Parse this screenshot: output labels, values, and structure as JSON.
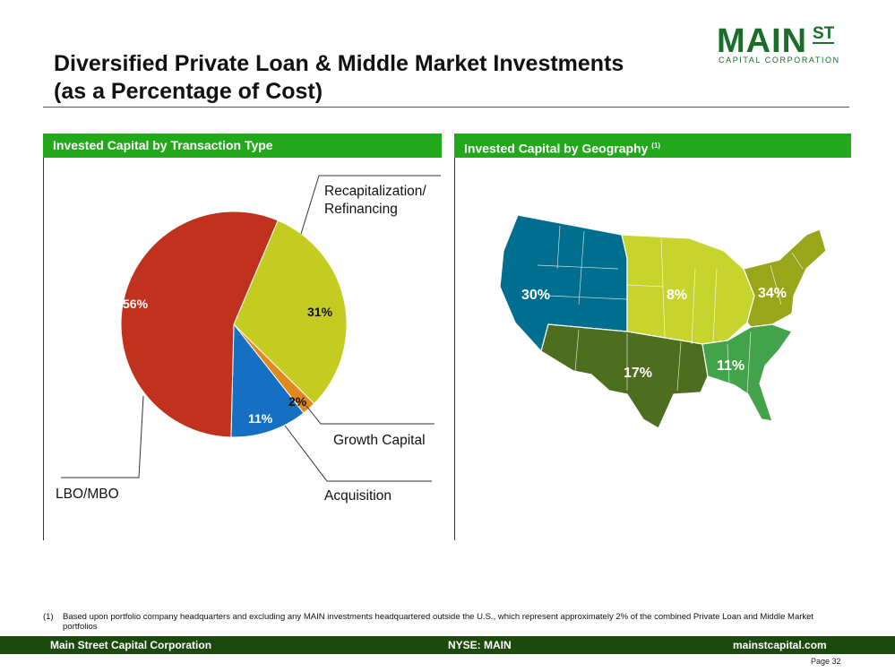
{
  "title_line1": "Diversified Private Loan & Middle Market Investments",
  "title_line2": "(as a Percentage of Cost)",
  "logo": {
    "main": "MAIN",
    "st": "ST",
    "sub": "CAPITAL CORPORATION"
  },
  "panels": {
    "left_header": "Invested Capital by Transaction Type",
    "right_header": "Invested Capital by Geography",
    "right_header_note": "(1)"
  },
  "chart_data": [
    {
      "type": "pie",
      "title": "Invested Capital by Transaction Type",
      "slices": [
        {
          "label": "LBO/MBO",
          "value": 56,
          "display": "56%",
          "color": "#c0311e"
        },
        {
          "label": "Recapitalization/ Refinancing",
          "value": 31,
          "display": "31%",
          "color": "#c4cc22"
        },
        {
          "label": "Growth Capital",
          "value": 2,
          "display": "2%",
          "color": "#e08a1e"
        },
        {
          "label": "Acquisition",
          "value": 11,
          "display": "11%",
          "color": "#1570c4"
        }
      ],
      "callouts": {
        "recap_line1": "Recapitalization/",
        "recap_line2": "Refinancing",
        "growth": "Growth Capital",
        "acquisition": "Acquisition",
        "lbo": "LBO/MBO"
      }
    },
    {
      "type": "map",
      "title": "Invested Capital by Geography",
      "regions": [
        {
          "name": "West",
          "display": "30%",
          "value": 30,
          "color": "#006e8f"
        },
        {
          "name": "Midwest",
          "display": "8%",
          "value": 8,
          "color": "#c8d42e"
        },
        {
          "name": "Northeast",
          "display": "34%",
          "value": 34,
          "color": "#9aa61a"
        },
        {
          "name": "Southwest",
          "display": "17%",
          "value": 17,
          "color": "#4d6e1e"
        },
        {
          "name": "Southeast",
          "display": "11%",
          "value": 11,
          "color": "#43a34a"
        }
      ]
    }
  ],
  "footnote": {
    "number": "(1)",
    "text": "Based upon portfolio company headquarters and excluding any MAIN investments headquartered outside the U.S., which represent approximately 2% of the combined Private Loan and Middle Market portfolios"
  },
  "footer": {
    "left": "Main Street Capital Corporation",
    "center": "NYSE: MAIN",
    "right": "mainstcapital.com"
  },
  "page_label": "Page  32"
}
